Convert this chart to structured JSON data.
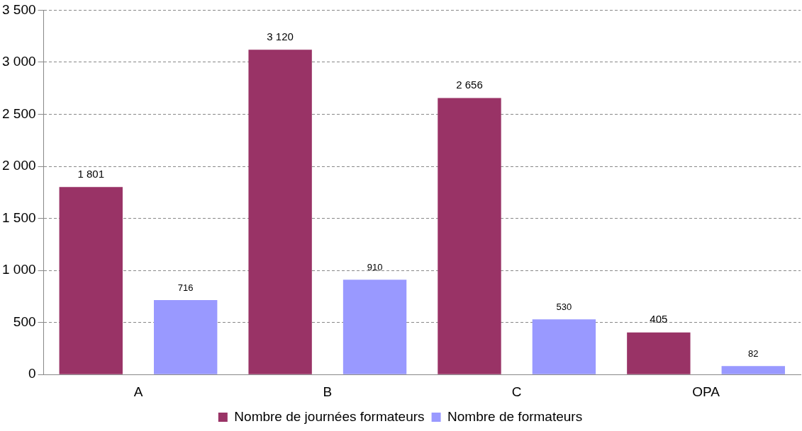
{
  "chart_data": {
    "type": "bar",
    "categories": [
      "A",
      "B",
      "C",
      "OPA"
    ],
    "series": [
      {
        "name": "Nombre de journées formateurs",
        "color": "#993366",
        "values": [
          1801,
          3120,
          2656,
          405
        ],
        "value_labels": [
          "1 801",
          "3 120",
          "2 656",
          "405"
        ]
      },
      {
        "name": "Nombre de formateurs",
        "color": "#9999ff",
        "values": [
          716,
          910,
          530,
          82
        ],
        "value_labels": [
          "716",
          "910",
          "530",
          "82"
        ]
      }
    ],
    "ylim": [
      0,
      3500
    ],
    "yticks": [
      0,
      {
        "value": 500,
        "label": "500"
      },
      {
        "value": 1000,
        "label": "1 000"
      },
      {
        "value": 1500,
        "label": "1 500"
      },
      {
        "value": 2000,
        "label": "2 000"
      },
      {
        "value": 2500,
        "label": "2 500"
      },
      {
        "value": 3000,
        "label": "3 000"
      },
      {
        "value": 3500,
        "label": "3 500"
      }
    ],
    "grid": "y",
    "legend": "bottom"
  }
}
